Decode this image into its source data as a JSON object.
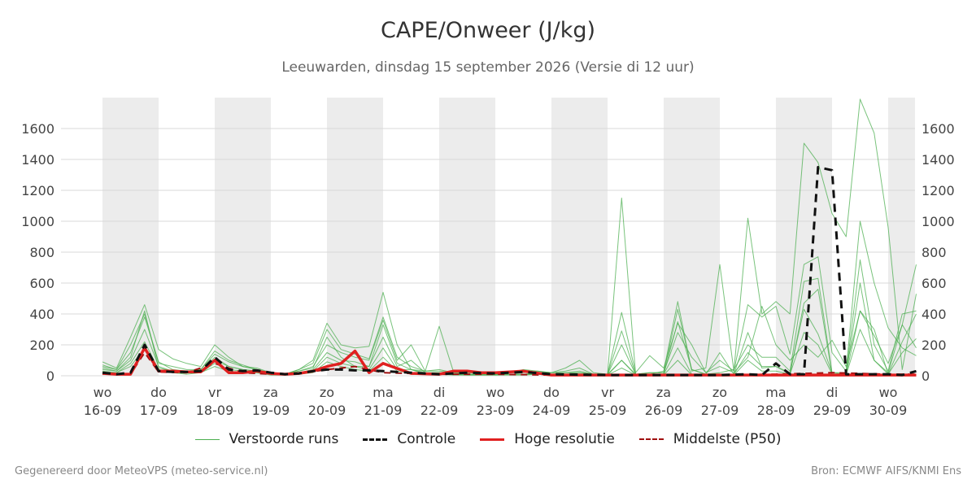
{
  "title": "CAPE/Onweer (J/kg)",
  "subtitle": "Leeuwarden, dinsdag 15 september 2026 (Versie di 12 uur)",
  "footer": {
    "left": "Gegenereerd door MeteoVPS (meteo-service.nl)",
    "right": "Bron: ECMWF AIFS/KNMI Ens"
  },
  "legend": [
    {
      "label": "Verstoorde runs",
      "color": "#4caf50",
      "style": "thin"
    },
    {
      "label": "Controle",
      "color": "#111111",
      "style": "dashed"
    },
    {
      "label": "Hoge resolutie",
      "color": "#e02020",
      "style": "solid"
    },
    {
      "label": "Middelste (P50)",
      "color": "#a01010",
      "style": "dashed-thin"
    }
  ],
  "chart_data": {
    "type": "line",
    "x_unit": "days since 16-09 00h (6-hourly)",
    "xlim": [
      0,
      14.5
    ],
    "ylim": [
      0,
      1800
    ],
    "yticks": [
      0,
      200,
      400,
      600,
      800,
      1000,
      1200,
      1400,
      1600
    ],
    "xtick_days": [
      "wo",
      "do",
      "vr",
      "za",
      "zo",
      "ma",
      "di",
      "wo",
      "do",
      "vr",
      "za",
      "zo",
      "ma",
      "di",
      "wo"
    ],
    "xtick_dates": [
      "16-09",
      "17-09",
      "18-09",
      "19-09",
      "20-09",
      "21-09",
      "22-09",
      "23-09",
      "24-09",
      "25-09",
      "26-09",
      "27-09",
      "28-09",
      "29-09",
      "30-09"
    ],
    "weekend_shading": true,
    "grid": true,
    "series": [
      {
        "name": "Controle",
        "color": "#111111",
        "x": [
          0,
          0.25,
          0.5,
          0.75,
          1,
          1.25,
          1.5,
          1.75,
          2,
          2.25,
          2.5,
          2.75,
          3,
          3.25,
          3.5,
          3.75,
          4,
          4.25,
          4.5,
          4.75,
          5,
          5.5,
          6,
          6.5,
          7,
          7.5,
          8,
          9,
          10,
          11,
          11.5,
          11.75,
          12,
          12.25,
          12.5,
          12.75,
          13,
          13.25,
          13.5,
          14,
          14.25,
          14.5
        ],
        "values": [
          20,
          10,
          20,
          200,
          30,
          25,
          25,
          30,
          120,
          40,
          30,
          35,
          20,
          10,
          15,
          30,
          40,
          40,
          35,
          35,
          30,
          20,
          10,
          20,
          15,
          25,
          10,
          5,
          5,
          5,
          10,
          5,
          80,
          10,
          10,
          1350,
          1330,
          10,
          10,
          10,
          5,
          30
        ]
      },
      {
        "name": "Hoge resolutie",
        "color": "#e02020",
        "x": [
          0,
          0.25,
          0.5,
          0.75,
          1,
          1.25,
          1.5,
          1.75,
          2,
          2.25,
          2.5,
          2.75,
          3,
          3.25,
          3.5,
          3.75,
          4,
          4.25,
          4.5,
          4.75,
          5,
          5.5,
          6,
          6.25,
          6.5,
          6.75,
          7,
          7.5,
          8,
          9,
          10,
          11,
          12,
          13,
          14,
          14.5
        ],
        "values": [
          15,
          10,
          10,
          180,
          30,
          30,
          25,
          25,
          100,
          20,
          20,
          30,
          15,
          10,
          15,
          30,
          60,
          80,
          160,
          20,
          80,
          15,
          10,
          30,
          30,
          20,
          20,
          30,
          5,
          5,
          5,
          5,
          5,
          5,
          5,
          5
        ]
      },
      {
        "name": "Middelste (P50)",
        "color": "#a01010",
        "x": [
          0,
          0.25,
          0.5,
          0.75,
          1,
          1.5,
          2,
          2.5,
          3,
          3.5,
          4,
          4.5,
          5,
          6,
          7,
          8,
          9,
          10,
          11,
          12,
          13,
          14,
          14.5
        ],
        "values": [
          15,
          10,
          10,
          150,
          25,
          20,
          80,
          20,
          10,
          15,
          40,
          60,
          20,
          10,
          10,
          5,
          5,
          5,
          5,
          10,
          20,
          10,
          10
        ]
      }
    ],
    "perturbed_runs": {
      "name": "Verstoorde runs",
      "color": "#4caf50",
      "x": [
        0,
        0.25,
        0.5,
        0.75,
        1,
        1.25,
        1.5,
        1.75,
        2,
        2.25,
        2.5,
        2.75,
        3,
        3.25,
        3.5,
        3.75,
        4,
        4.25,
        4.5,
        4.75,
        5,
        5.25,
        5.5,
        5.75,
        6,
        6.25,
        6.5,
        6.75,
        7,
        7.25,
        7.5,
        7.75,
        8,
        8.25,
        8.5,
        8.75,
        9,
        9.25,
        9.5,
        9.75,
        10,
        10.25,
        10.5,
        10.75,
        11,
        11.25,
        11.5,
        11.75,
        12,
        12.25,
        12.5,
        12.75,
        13,
        13.25,
        13.5,
        13.75,
        14,
        14.25,
        14.5
      ],
      "runs": [
        [
          90,
          50,
          250,
          460,
          170,
          110,
          80,
          60,
          200,
          120,
          60,
          50,
          20,
          10,
          40,
          100,
          340,
          200,
          180,
          190,
          540,
          200,
          40,
          30,
          320,
          30,
          20,
          20,
          10,
          20,
          40,
          30,
          20,
          50,
          100,
          20,
          10,
          1150,
          10,
          10,
          30,
          480,
          30,
          50,
          720,
          30,
          1020,
          400,
          480,
          400,
          1505,
          1380,
          1050,
          900,
          1790,
          1570,
          960,
          40,
          530
        ],
        [
          60,
          40,
          150,
          380,
          90,
          40,
          30,
          40,
          140,
          90,
          60,
          40,
          10,
          10,
          30,
          60,
          200,
          150,
          120,
          100,
          360,
          100,
          200,
          30,
          30,
          20,
          10,
          10,
          10,
          20,
          20,
          30,
          20,
          20,
          30,
          10,
          10,
          410,
          20,
          130,
          50,
          340,
          200,
          20,
          100,
          30,
          460,
          380,
          450,
          140,
          720,
          770,
          150,
          30,
          1000,
          600,
          310,
          180,
          130
        ],
        [
          50,
          30,
          100,
          300,
          60,
          30,
          20,
          30,
          100,
          60,
          40,
          30,
          10,
          10,
          20,
          40,
          150,
          100,
          90,
          60,
          250,
          60,
          100,
          20,
          20,
          10,
          10,
          10,
          10,
          10,
          10,
          20,
          10,
          10,
          20,
          10,
          10,
          200,
          10,
          20,
          20,
          430,
          40,
          10,
          20,
          40,
          200,
          120,
          120,
          30,
          610,
          630,
          20,
          20,
          750,
          200,
          30,
          400,
          420
        ],
        [
          30,
          20,
          80,
          220,
          40,
          20,
          20,
          20,
          80,
          40,
          30,
          20,
          10,
          5,
          10,
          30,
          120,
          80,
          60,
          40,
          180,
          40,
          40,
          10,
          10,
          10,
          5,
          5,
          5,
          10,
          10,
          10,
          10,
          10,
          10,
          5,
          5,
          100,
          5,
          10,
          10,
          180,
          10,
          5,
          10,
          10,
          150,
          60,
          60,
          10,
          470,
          560,
          10,
          10,
          600,
          100,
          20,
          330,
          180
        ],
        [
          40,
          30,
          120,
          420,
          50,
          30,
          30,
          30,
          120,
          60,
          40,
          30,
          10,
          10,
          30,
          50,
          250,
          120,
          60,
          60,
          330,
          80,
          40,
          20,
          20,
          10,
          10,
          10,
          10,
          10,
          10,
          10,
          10,
          20,
          20,
          10,
          10,
          290,
          10,
          10,
          10,
          350,
          40,
          10,
          150,
          10,
          280,
          50,
          60,
          20,
          430,
          270,
          20,
          10,
          420,
          300,
          10,
          220,
          400
        ],
        [
          20,
          20,
          60,
          180,
          30,
          20,
          10,
          20,
          60,
          30,
          20,
          20,
          5,
          5,
          10,
          20,
          90,
          60,
          40,
          30,
          120,
          30,
          20,
          10,
          10,
          5,
          5,
          5,
          5,
          5,
          5,
          10,
          5,
          5,
          10,
          5,
          5,
          50,
          5,
          5,
          5,
          100,
          5,
          5,
          5,
          5,
          100,
          30,
          30,
          10,
          280,
          200,
          10,
          5,
          300,
          100,
          10,
          150,
          240
        ],
        [
          70,
          40,
          200,
          400,
          80,
          60,
          40,
          40,
          160,
          100,
          70,
          40,
          20,
          10,
          40,
          80,
          300,
          170,
          140,
          110,
          380,
          120,
          60,
          30,
          40,
          20,
          20,
          20,
          10,
          20,
          30,
          20,
          20,
          30,
          50,
          10,
          10,
          100,
          10,
          20,
          20,
          280,
          120,
          20,
          60,
          20,
          120,
          450,
          200,
          100,
          200,
          120,
          230,
          60,
          420,
          260,
          80,
          330,
          720
        ]
      ]
    }
  }
}
